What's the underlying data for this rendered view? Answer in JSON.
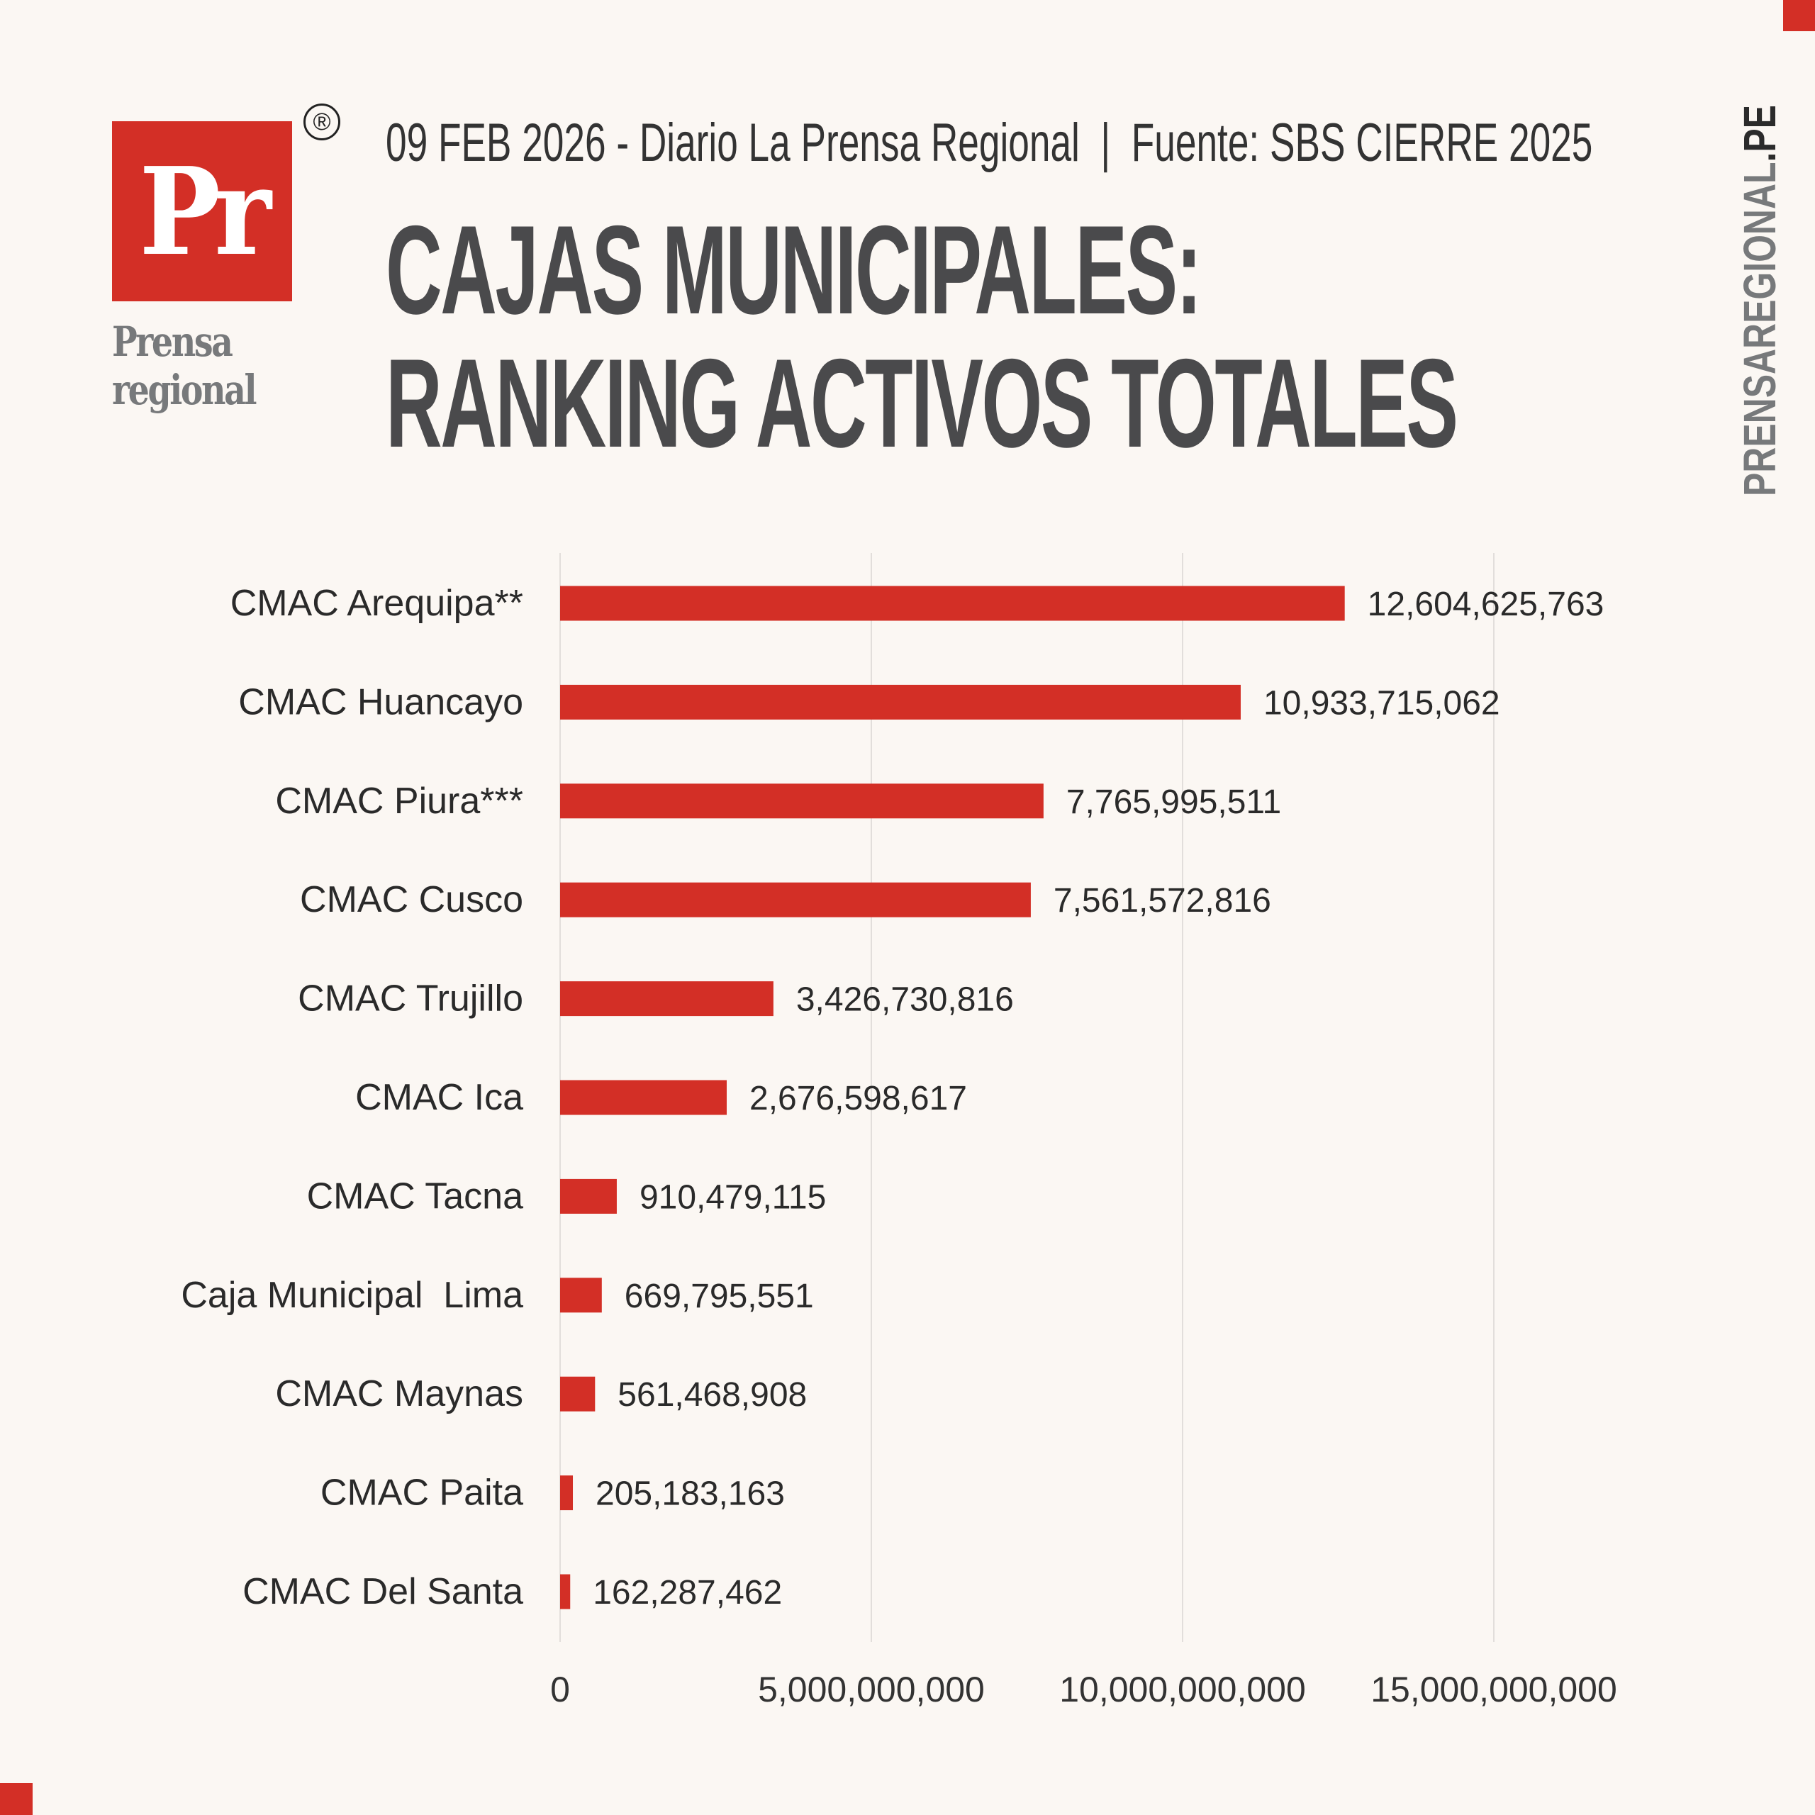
{
  "brand": {
    "logo_text": "Pr",
    "registered": "®",
    "name_line1": "Prensa",
    "name_line2": "regional",
    "site_main": "PRENSAREGIONAL",
    "site_tld": ".PE",
    "red": "#d32f26"
  },
  "header": {
    "subtitle": "09 FEB 2026 - Diario La Prensa Regional  |  Fuente: SBS CIERRE 2025",
    "title_line1": "CAJAS MUNICIPALES:",
    "title_line2": "RANKING ACTIVOS TOTALES"
  },
  "chart_data": {
    "type": "bar",
    "orientation": "horizontal",
    "title": "CAJAS MUNICIPALES: RANKING ACTIVOS TOTALES",
    "categories": [
      "CMAC Arequipa**",
      "CMAC Huancayo",
      "CMAC Piura***",
      "CMAC Cusco",
      "CMAC Trujillo",
      "CMAC Ica",
      "CMAC Tacna",
      "Caja Municipal  Lima",
      "CMAC Maynas",
      "CMAC Paita",
      "CMAC Del Santa"
    ],
    "values": [
      12604625763,
      10933715062,
      7765995511,
      7561572816,
      3426730816,
      2676598617,
      910479115,
      669795551,
      561468908,
      205183163,
      162287462
    ],
    "value_labels": [
      "12,604,625,763",
      "10,933,715,062",
      "7,765,995,511",
      "7,561,572,816",
      "3,426,730,816",
      "2,676,598,617",
      "910,479,115",
      "669,795,551",
      "561,468,908",
      "205,183,163",
      "162,287,462"
    ],
    "xticks": [
      0,
      5000000000,
      10000000000,
      15000000000
    ],
    "xtick_labels": [
      "0",
      "5,000,000,000",
      "10,000,000,000",
      "15,000,000,000"
    ],
    "xlim": [
      0,
      15000000000
    ],
    "grid": true,
    "bar_color": "#d32f26",
    "xlabel": "",
    "ylabel": ""
  }
}
